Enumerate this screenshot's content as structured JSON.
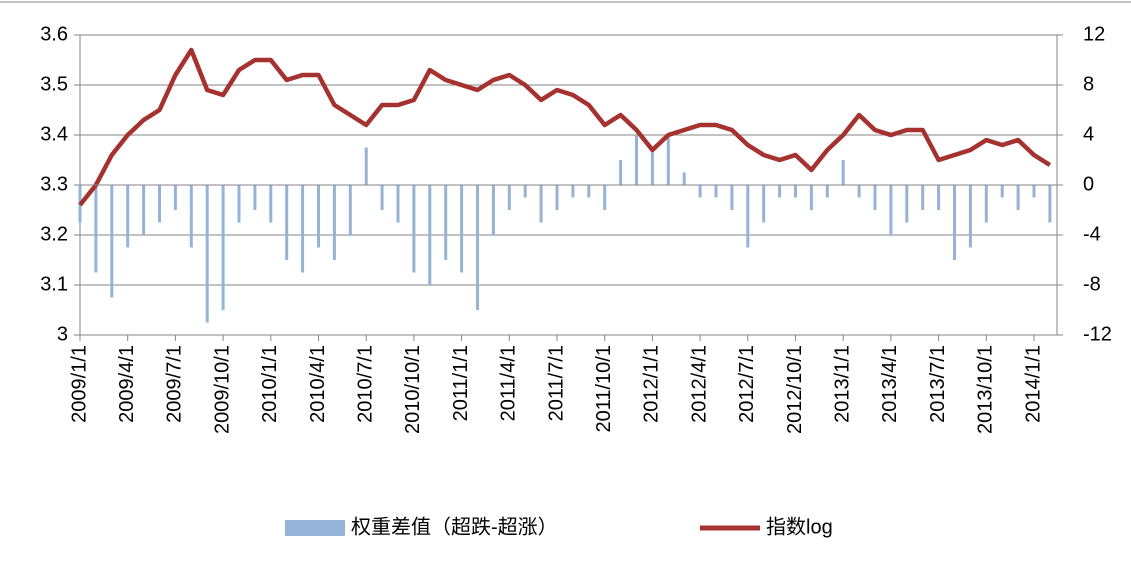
{
  "chart_data": {
    "type": "bar-line",
    "categories": [
      "2009/1/1",
      null,
      null,
      "2009/4/1",
      null,
      null,
      "2009/7/1",
      null,
      null,
      "2009/10/1",
      null,
      null,
      "2010/1/1",
      null,
      null,
      "2010/4/1",
      null,
      null,
      "2010/7/1",
      null,
      null,
      "2010/10/1",
      null,
      null,
      "2011/1/1",
      null,
      null,
      "2011/4/1",
      null,
      null,
      "2011/7/1",
      null,
      null,
      "2011/10/1",
      null,
      null,
      "2012/1/1",
      null,
      null,
      "2012/4/1",
      null,
      null,
      "2012/7/1",
      null,
      null,
      "2012/10/1",
      null,
      null,
      "2013/1/1",
      null,
      null,
      "2013/4/1",
      null,
      null,
      "2013/7/1",
      null,
      null,
      "2013/10/1",
      null,
      null,
      "2014/1/1",
      null
    ],
    "series": [
      {
        "name": "权重差值（超跌-超涨）",
        "type": "bar",
        "axis": "y2",
        "color": "#95b3d7",
        "values": [
          -3,
          -7,
          -9,
          -5,
          -4,
          -3,
          -2,
          -5,
          -11,
          -10,
          -3,
          -2,
          -3,
          -6,
          -7,
          -5,
          -6,
          -4,
          3,
          -2,
          -3,
          -7,
          -8,
          -6,
          -7,
          -10,
          -4,
          -2,
          -1,
          -3,
          -2,
          -1,
          -1,
          -2,
          2,
          4,
          3,
          4,
          1,
          -1,
          -1,
          -2,
          -5,
          -3,
          -1,
          -1,
          -2,
          -1,
          2,
          -1,
          -2,
          -4,
          -3,
          -2,
          -2,
          -6,
          -5,
          -3,
          -1,
          -2,
          -1,
          -3
        ]
      },
      {
        "name": "指数log",
        "type": "line",
        "axis": "y",
        "color": "#a5322f",
        "values": [
          3.26,
          3.3,
          3.36,
          3.4,
          3.43,
          3.45,
          3.52,
          3.57,
          3.49,
          3.48,
          3.53,
          3.55,
          3.55,
          3.51,
          3.52,
          3.52,
          3.46,
          3.44,
          3.42,
          3.46,
          3.46,
          3.47,
          3.53,
          3.51,
          3.5,
          3.49,
          3.51,
          3.52,
          3.5,
          3.47,
          3.49,
          3.48,
          3.46,
          3.42,
          3.44,
          3.41,
          3.37,
          3.4,
          3.41,
          3.42,
          3.42,
          3.41,
          3.38,
          3.36,
          3.35,
          3.36,
          3.33,
          3.37,
          3.4,
          3.44,
          3.41,
          3.4,
          3.41,
          3.41,
          3.35,
          3.36,
          3.37,
          3.39,
          3.38,
          3.39,
          3.36,
          3.34
        ]
      }
    ],
    "ylim": [
      3,
      3.6
    ],
    "yticks": [
      3,
      3.1,
      3.2,
      3.3,
      3.4,
      3.5,
      3.6
    ],
    "y2lim": [
      -12,
      12
    ],
    "y2ticks": [
      -12,
      -8,
      -4,
      0,
      4,
      8,
      12
    ],
    "grid": true,
    "legend": "bottom"
  }
}
